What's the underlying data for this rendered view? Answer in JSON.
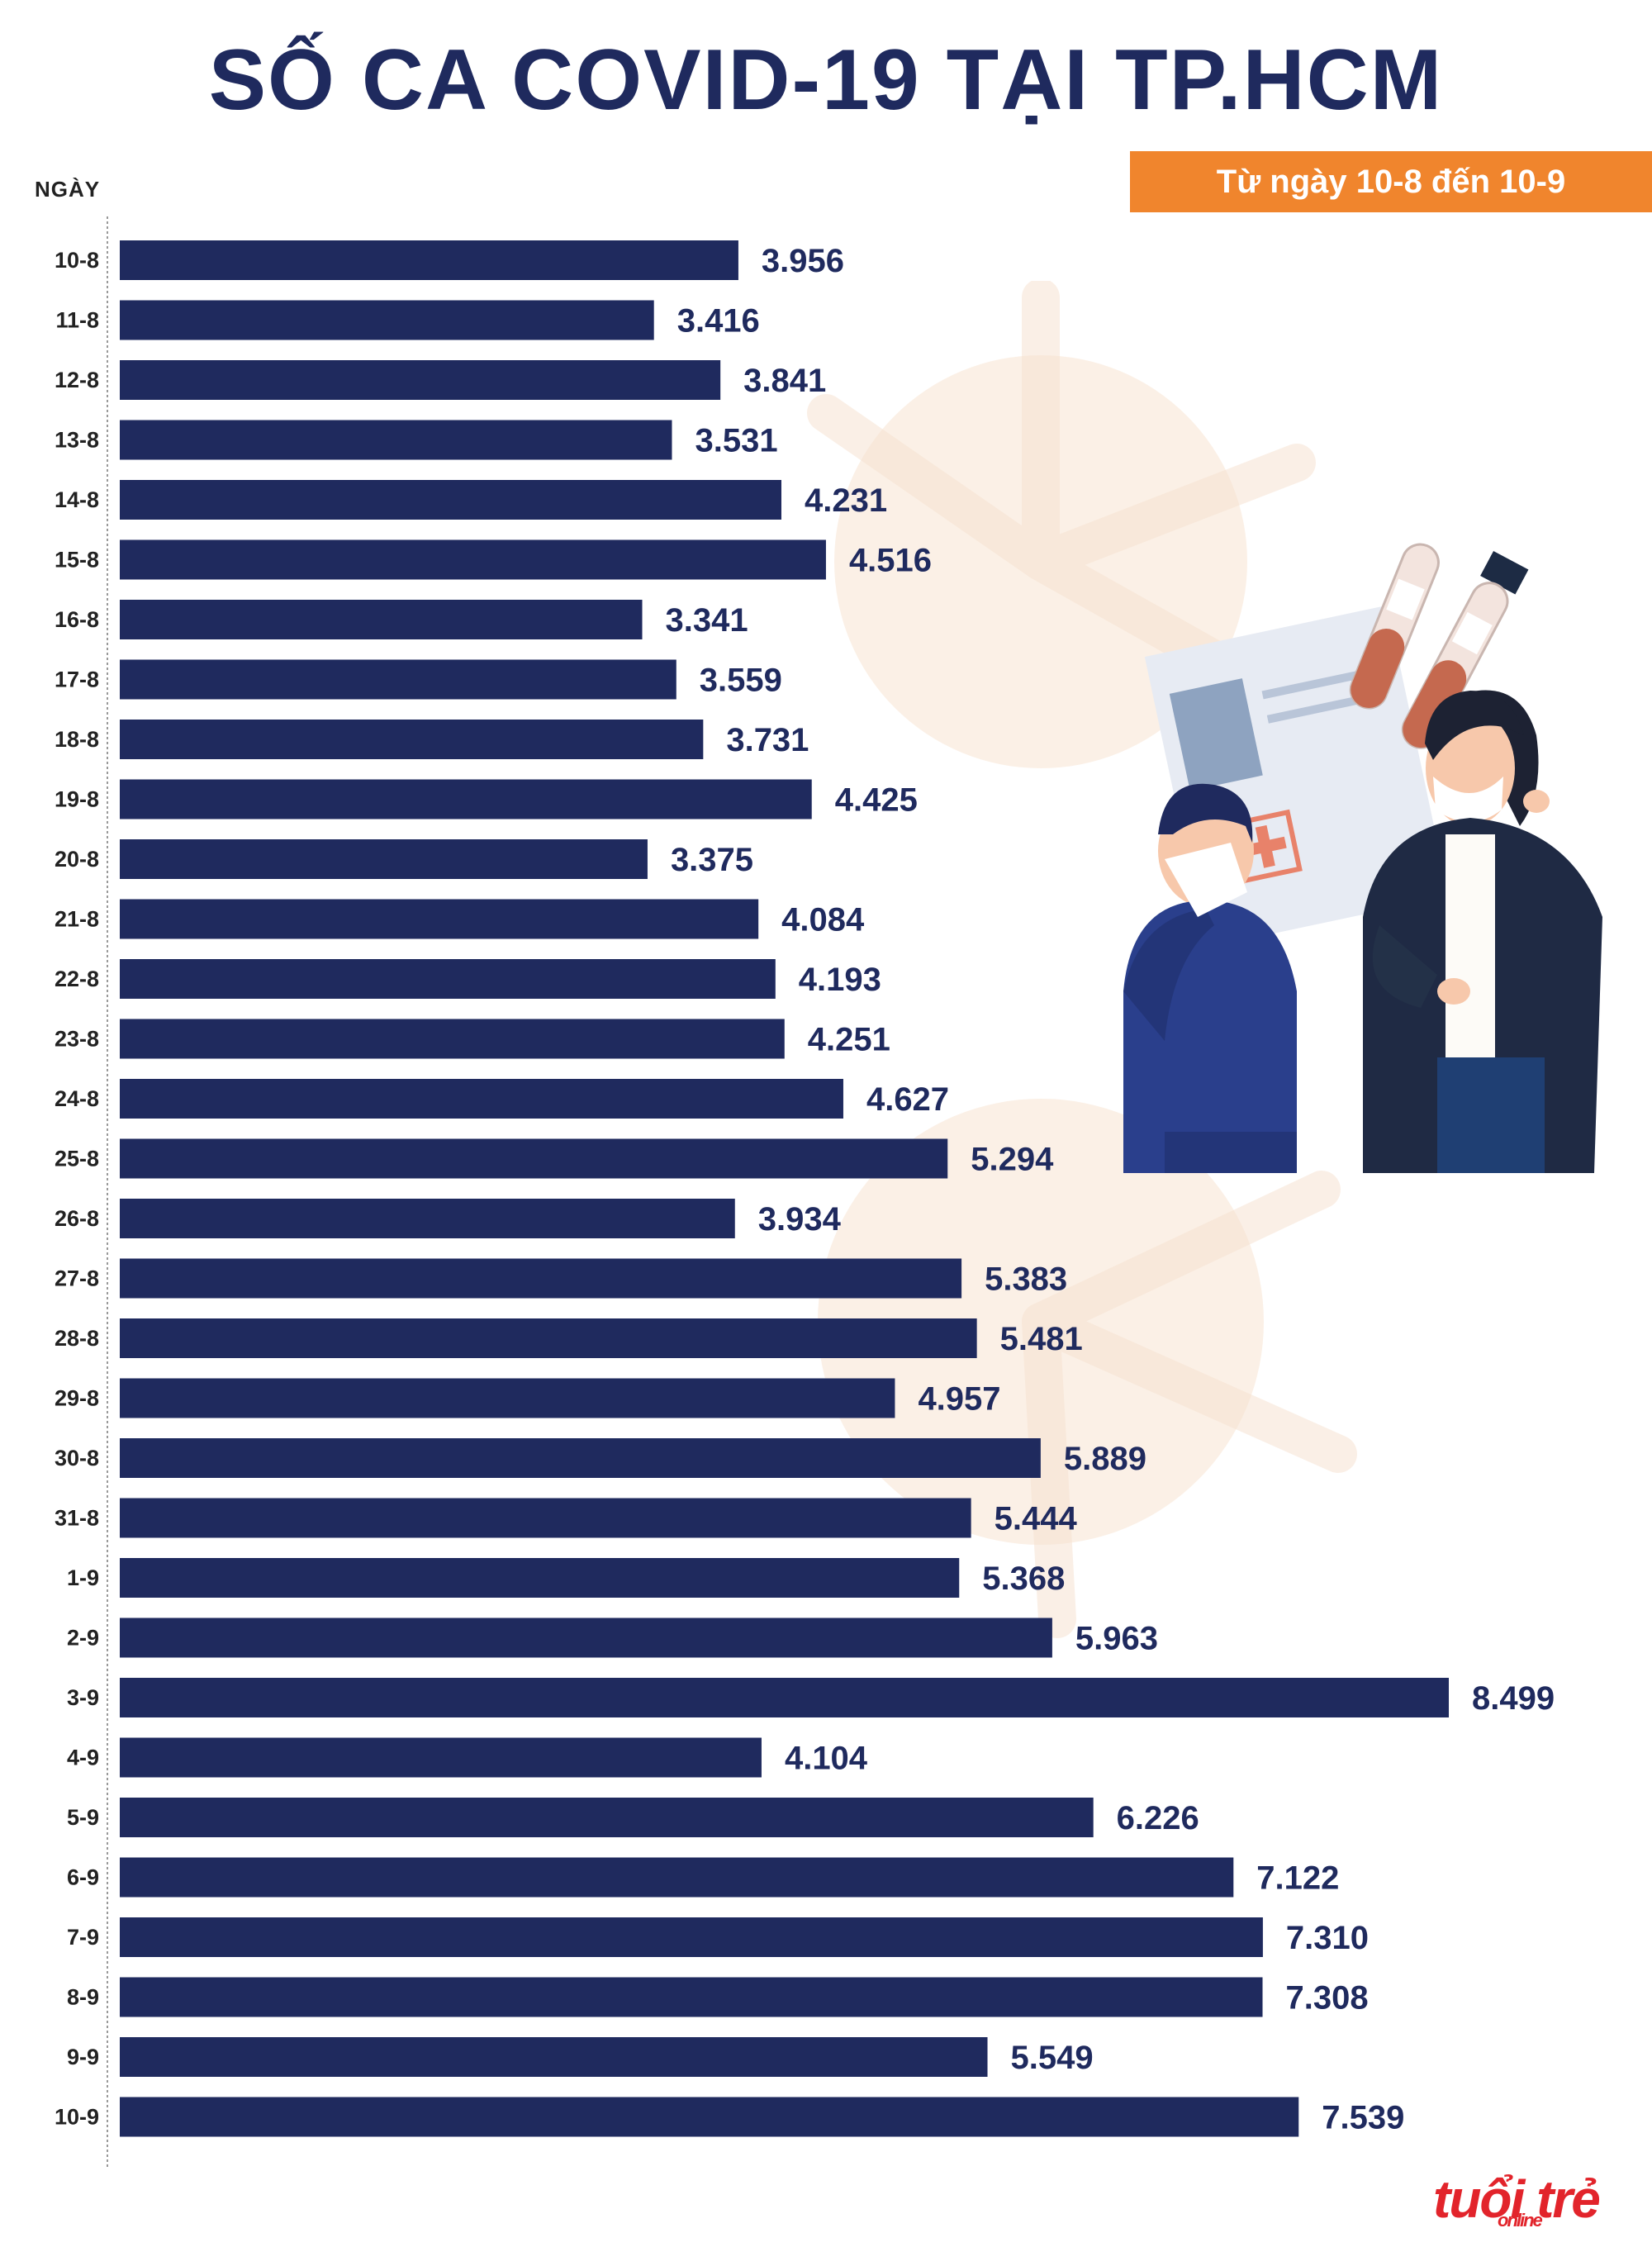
{
  "header": {
    "title": "SỐ CA COVID-19 TẠI TP.HCM",
    "date_range": "Từ ngày 10-8 đến 10-9",
    "axis_label": "NGÀY"
  },
  "logo": {
    "main": "tuổi trẻ",
    "sub": "online"
  },
  "colors": {
    "bar": "#1f2a5e",
    "accent": "#f0852d",
    "logo": "#e2242b"
  },
  "chart_data": {
    "type": "bar",
    "orientation": "horizontal",
    "title": "SỐ CA COVID-19 TẠI TP.HCM",
    "subtitle": "Từ ngày 10-8 đến 10-9",
    "ylabel": "NGÀY",
    "xlim": [
      0,
      8499
    ],
    "categories": [
      "10-8",
      "11-8",
      "12-8",
      "13-8",
      "14-8",
      "15-8",
      "16-8",
      "17-8",
      "18-8",
      "19-8",
      "20-8",
      "21-8",
      "22-8",
      "23-8",
      "24-8",
      "25-8",
      "26-8",
      "27-8",
      "28-8",
      "29-8",
      "30-8",
      "31-8",
      "1-9",
      "2-9",
      "3-9",
      "4-9",
      "5-9",
      "6-9",
      "7-9",
      "8-9",
      "9-9",
      "10-9"
    ],
    "values": [
      3956,
      3416,
      3841,
      3531,
      4231,
      4516,
      3341,
      3559,
      3731,
      4425,
      3375,
      4084,
      4193,
      4251,
      4627,
      5294,
      3934,
      5383,
      5481,
      4957,
      5889,
      5444,
      5368,
      5963,
      8499,
      4104,
      6226,
      7122,
      7310,
      7308,
      5549,
      7539
    ],
    "labels": [
      "3.956",
      "3.416",
      "3.841",
      "3.531",
      "4.231",
      "4.516",
      "3.341",
      "3.559",
      "3.731",
      "4.425",
      "3.375",
      "4.084",
      "4.193",
      "4.251",
      "4.627",
      "5.294",
      "3.934",
      "5.383",
      "5.481",
      "4.957",
      "5.889",
      "5.444",
      "5.368",
      "5.963",
      "8.499",
      "4.104",
      "6.226",
      "7.122",
      "7.310",
      "7.308",
      "5.549",
      "7.539"
    ]
  }
}
